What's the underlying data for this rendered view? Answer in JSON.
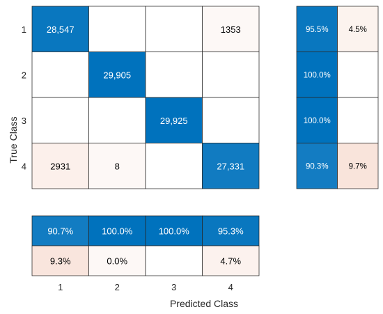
{
  "chart_data": {
    "type": "heatmap",
    "xlabel": "Predicted Class",
    "ylabel": "True Class",
    "classes": [
      "1",
      "2",
      "3",
      "4"
    ],
    "matrix": [
      [
        28547,
        0,
        0,
        1353
      ],
      [
        0,
        29905,
        0,
        0
      ],
      [
        0,
        0,
        29925,
        0
      ],
      [
        2931,
        8,
        0,
        27331
      ]
    ],
    "matrix_labels": [
      [
        "28,547",
        "",
        "",
        "1353"
      ],
      [
        "",
        "29,905",
        "",
        ""
      ],
      [
        "",
        "",
        "29,925",
        ""
      ],
      [
        "2931",
        "8",
        "",
        "27,331"
      ]
    ],
    "row_summary": {
      "correct": [
        95.5,
        100.0,
        100.0,
        90.3
      ],
      "incorrect": [
        4.5,
        null,
        null,
        9.7
      ],
      "correct_labels": [
        "95.5%",
        "100.0%",
        "100.0%",
        "90.3%"
      ],
      "incorrect_labels": [
        "4.5%",
        "",
        "",
        "9.7%"
      ]
    },
    "column_summary": {
      "correct": [
        90.7,
        100.0,
        100.0,
        95.3
      ],
      "incorrect": [
        9.3,
        0.0,
        null,
        4.7
      ],
      "correct_labels": [
        "90.7%",
        "100.0%",
        "100.0%",
        "95.3%"
      ],
      "incorrect_labels": [
        "9.3%",
        "0.0%",
        "",
        "4.7%"
      ]
    },
    "colors": {
      "correct": "#0072BD",
      "incorrect": "#D95319",
      "empty": "#FFFFFF",
      "border": "#262626"
    }
  }
}
